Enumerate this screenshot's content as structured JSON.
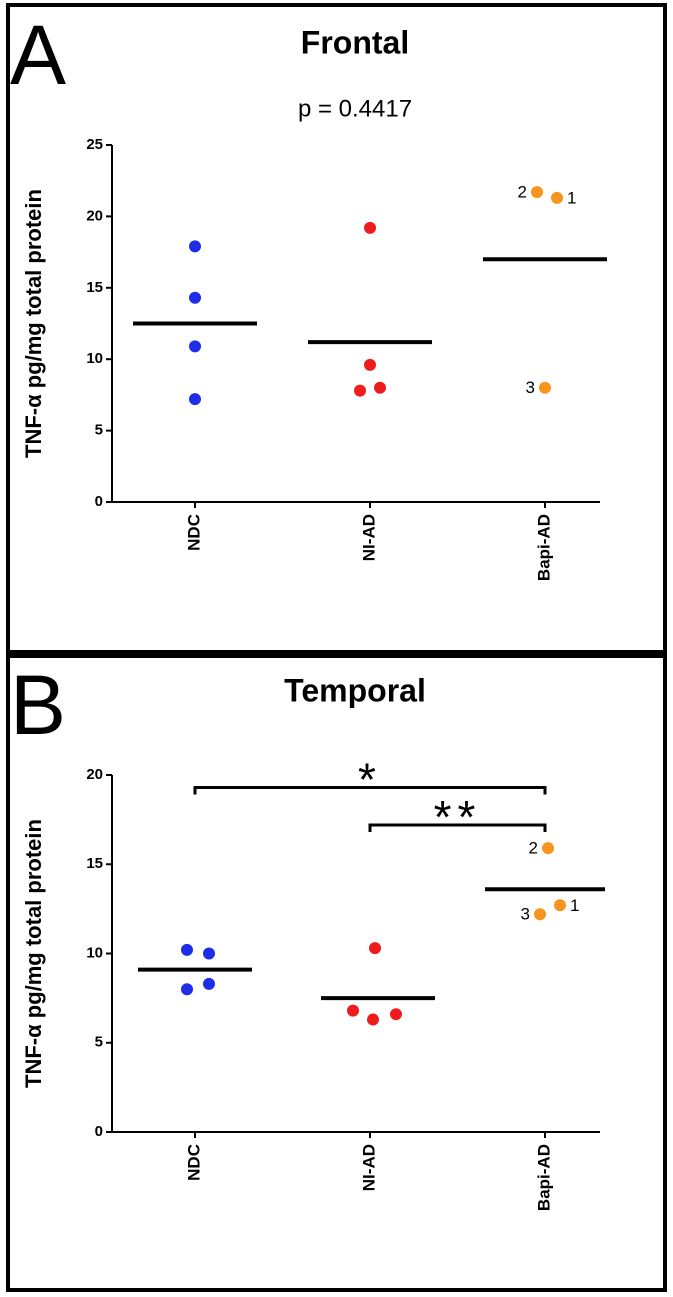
{
  "chart_data": [
    {
      "type": "scatter",
      "panel": "A",
      "title": "Frontal",
      "subtitle": "p = 0.4417",
      "ylabel": "TNF-α pg/mg total protein",
      "series": [
        {
          "name": "NDC",
          "color": "#1f2de6",
          "values": [
            17.9,
            14.3,
            10.9,
            7.2
          ],
          "mean": 12.5
        },
        {
          "name": "NI-AD",
          "color": "#ee1c1c",
          "values": [
            19.2,
            9.6,
            7.8,
            8.0
          ],
          "mean": 11.2
        },
        {
          "name": "Bapi-AD",
          "color": "#f7941d",
          "values": [
            21.7,
            21.3,
            8.0
          ],
          "labels": [
            "2",
            "1",
            "3"
          ],
          "mean": 17.0
        }
      ],
      "ylim": [
        0,
        25
      ],
      "yticks": [
        0,
        5,
        10,
        15,
        20,
        25
      ]
    },
    {
      "type": "scatter",
      "panel": "B",
      "title": "Temporal",
      "ylabel": "TNF-α pg/mg total protein",
      "series": [
        {
          "name": "NDC",
          "color": "#1f2de6",
          "values": [
            10.2,
            10.0,
            8.0,
            8.3
          ],
          "mean": 9.1
        },
        {
          "name": "NI-AD",
          "color": "#ee1c1c",
          "values": [
            10.3,
            6.8,
            6.3,
            6.6
          ],
          "mean": 7.5
        },
        {
          "name": "Bapi-AD",
          "color": "#f7941d",
          "values": [
            15.9,
            12.7,
            12.2
          ],
          "labels": [
            "2",
            "1",
            "3"
          ],
          "mean": 13.6
        }
      ],
      "brackets": [
        {
          "from": "NDC",
          "to": "Bapi-AD",
          "y": 19.3,
          "label": "*"
        },
        {
          "from": "NI-AD",
          "to": "Bapi-AD",
          "y": 17.2,
          "label": "**"
        }
      ],
      "ylim": [
        0,
        20
      ],
      "yticks": [
        0,
        5,
        10,
        15,
        20
      ]
    }
  ]
}
